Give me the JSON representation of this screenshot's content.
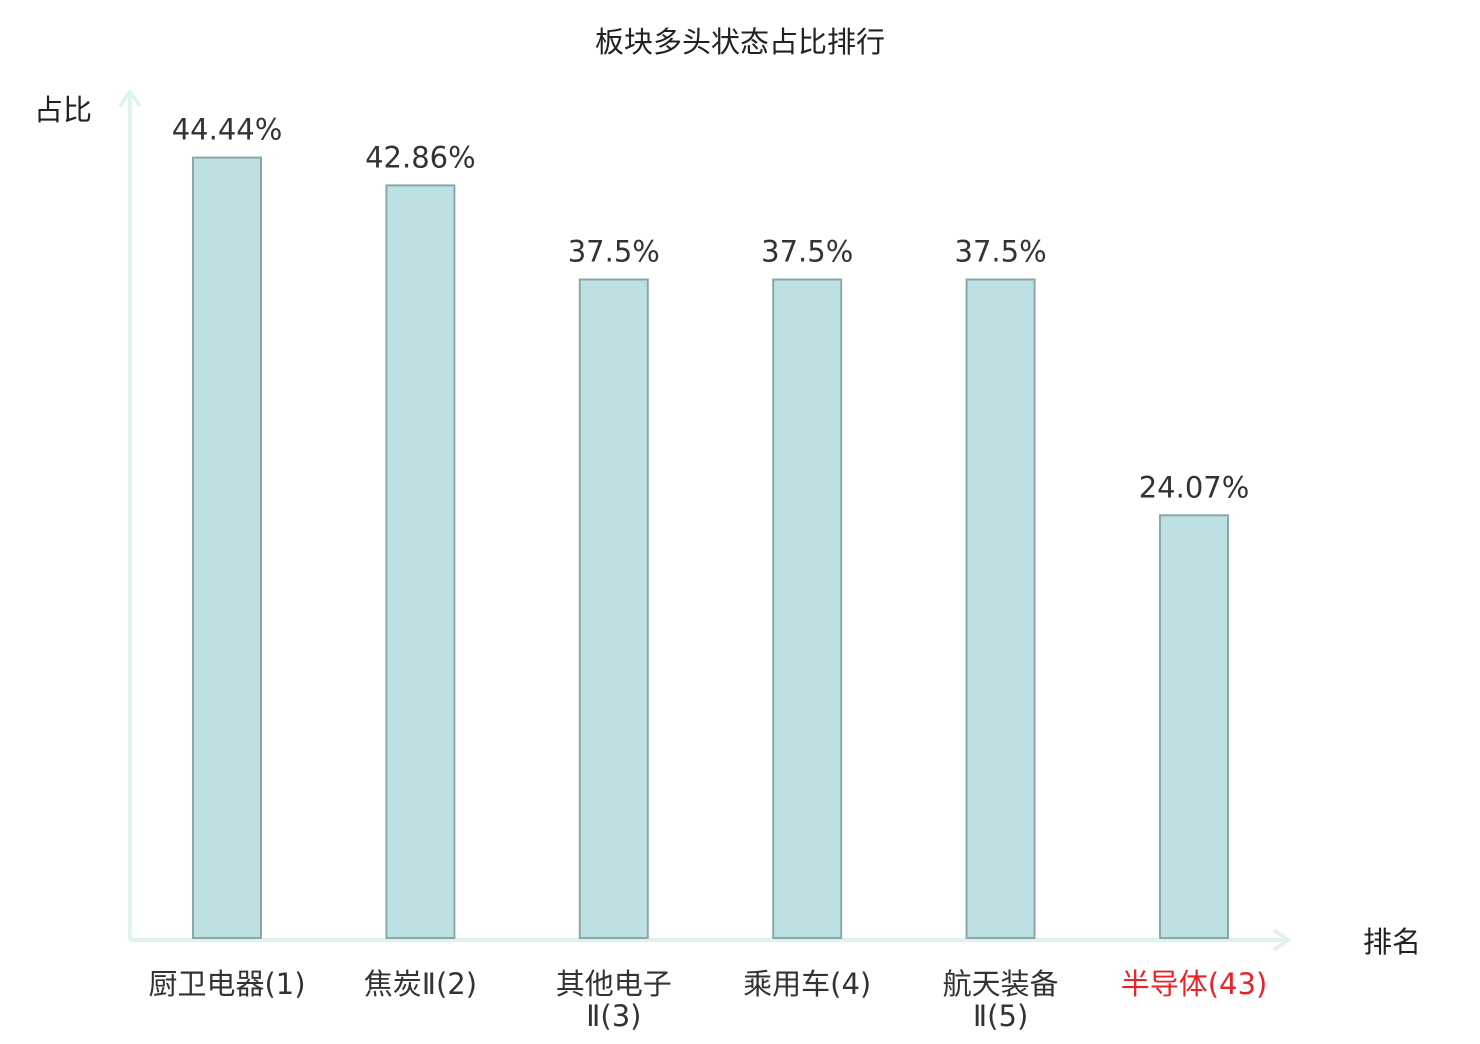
{
  "chart_data": {
    "type": "bar",
    "title": "板块多头状态占比排行",
    "ylabel": "占比",
    "xlabel": "排名",
    "ylim": [
      0,
      50
    ],
    "categories": [
      {
        "lines": [
          "厨卫电器(1)"
        ],
        "highlight": false
      },
      {
        "lines": [
          "焦炭Ⅱ(2)"
        ],
        "highlight": false
      },
      {
        "lines": [
          "其他电子",
          "Ⅱ(3)"
        ],
        "highlight": false
      },
      {
        "lines": [
          "乘用车(4)"
        ],
        "highlight": false
      },
      {
        "lines": [
          "航天装备",
          "Ⅱ(5)"
        ],
        "highlight": false
      },
      {
        "lines": [
          "半导体(43)"
        ],
        "highlight": true
      }
    ],
    "values": [
      44.44,
      42.86,
      37.5,
      37.5,
      37.5,
      24.07
    ],
    "value_labels": [
      "44.44%",
      "42.86%",
      "37.5%",
      "37.5%",
      "37.5%",
      "24.07%"
    ],
    "grid": false,
    "colors": {
      "bar_fill": "#bde0e3",
      "bar_stroke": "#8aa8aa",
      "axis": "#dff2ef",
      "text": "#333333",
      "highlight_text": "#e8242a"
    }
  }
}
